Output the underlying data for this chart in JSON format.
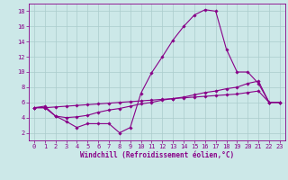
{
  "background_color": "#cce8e8",
  "line_color": "#880088",
  "grid_color": "#aacccc",
  "xlabel": "Windchill (Refroidissement éolien,°C)",
  "xlabel_color": "#880088",
  "tick_color": "#880088",
  "xlim": [
    -0.5,
    23.5
  ],
  "ylim": [
    1.0,
    19.0
  ],
  "yticks": [
    2,
    4,
    6,
    8,
    10,
    12,
    14,
    16,
    18
  ],
  "xticks": [
    0,
    1,
    2,
    3,
    4,
    5,
    6,
    7,
    8,
    9,
    10,
    11,
    12,
    13,
    14,
    15,
    16,
    17,
    18,
    19,
    20,
    21,
    22,
    23
  ],
  "line1_x": [
    0,
    1,
    2,
    3,
    4,
    5,
    6,
    7,
    8,
    9,
    10,
    11,
    12,
    13,
    14,
    15,
    16,
    17,
    18,
    19,
    20,
    21,
    22,
    23
  ],
  "line1_y": [
    5.3,
    5.5,
    4.2,
    3.5,
    2.7,
    3.2,
    3.2,
    3.2,
    2.0,
    2.7,
    7.2,
    9.9,
    12.0,
    14.2,
    16.0,
    17.5,
    18.2,
    18.0,
    13.0,
    10.0,
    10.0,
    8.5,
    6.0,
    6.0
  ],
  "line2_x": [
    0,
    1,
    2,
    3,
    4,
    5,
    6,
    7,
    8,
    9,
    10,
    11,
    12,
    13,
    14,
    15,
    16,
    17,
    18,
    19,
    20,
    21,
    22,
    23
  ],
  "line2_y": [
    5.3,
    5.3,
    4.2,
    4.0,
    4.1,
    4.3,
    4.7,
    5.0,
    5.2,
    5.5,
    5.8,
    6.0,
    6.3,
    6.5,
    6.7,
    7.0,
    7.3,
    7.5,
    7.8,
    8.0,
    8.5,
    8.8,
    6.0,
    6.0
  ],
  "line3_x": [
    0,
    1,
    2,
    3,
    4,
    5,
    6,
    7,
    8,
    9,
    10,
    11,
    12,
    13,
    14,
    15,
    16,
    17,
    18,
    19,
    20,
    21,
    22,
    23
  ],
  "line3_y": [
    5.3,
    5.3,
    5.4,
    5.5,
    5.6,
    5.7,
    5.8,
    5.9,
    6.0,
    6.1,
    6.2,
    6.3,
    6.4,
    6.5,
    6.6,
    6.7,
    6.8,
    6.9,
    7.0,
    7.1,
    7.3,
    7.5,
    6.0,
    6.0
  ],
  "marker": "D",
  "marker_size": 1.8,
  "line_width": 0.8,
  "tick_fontsize": 5.0,
  "xlabel_fontsize": 5.5
}
